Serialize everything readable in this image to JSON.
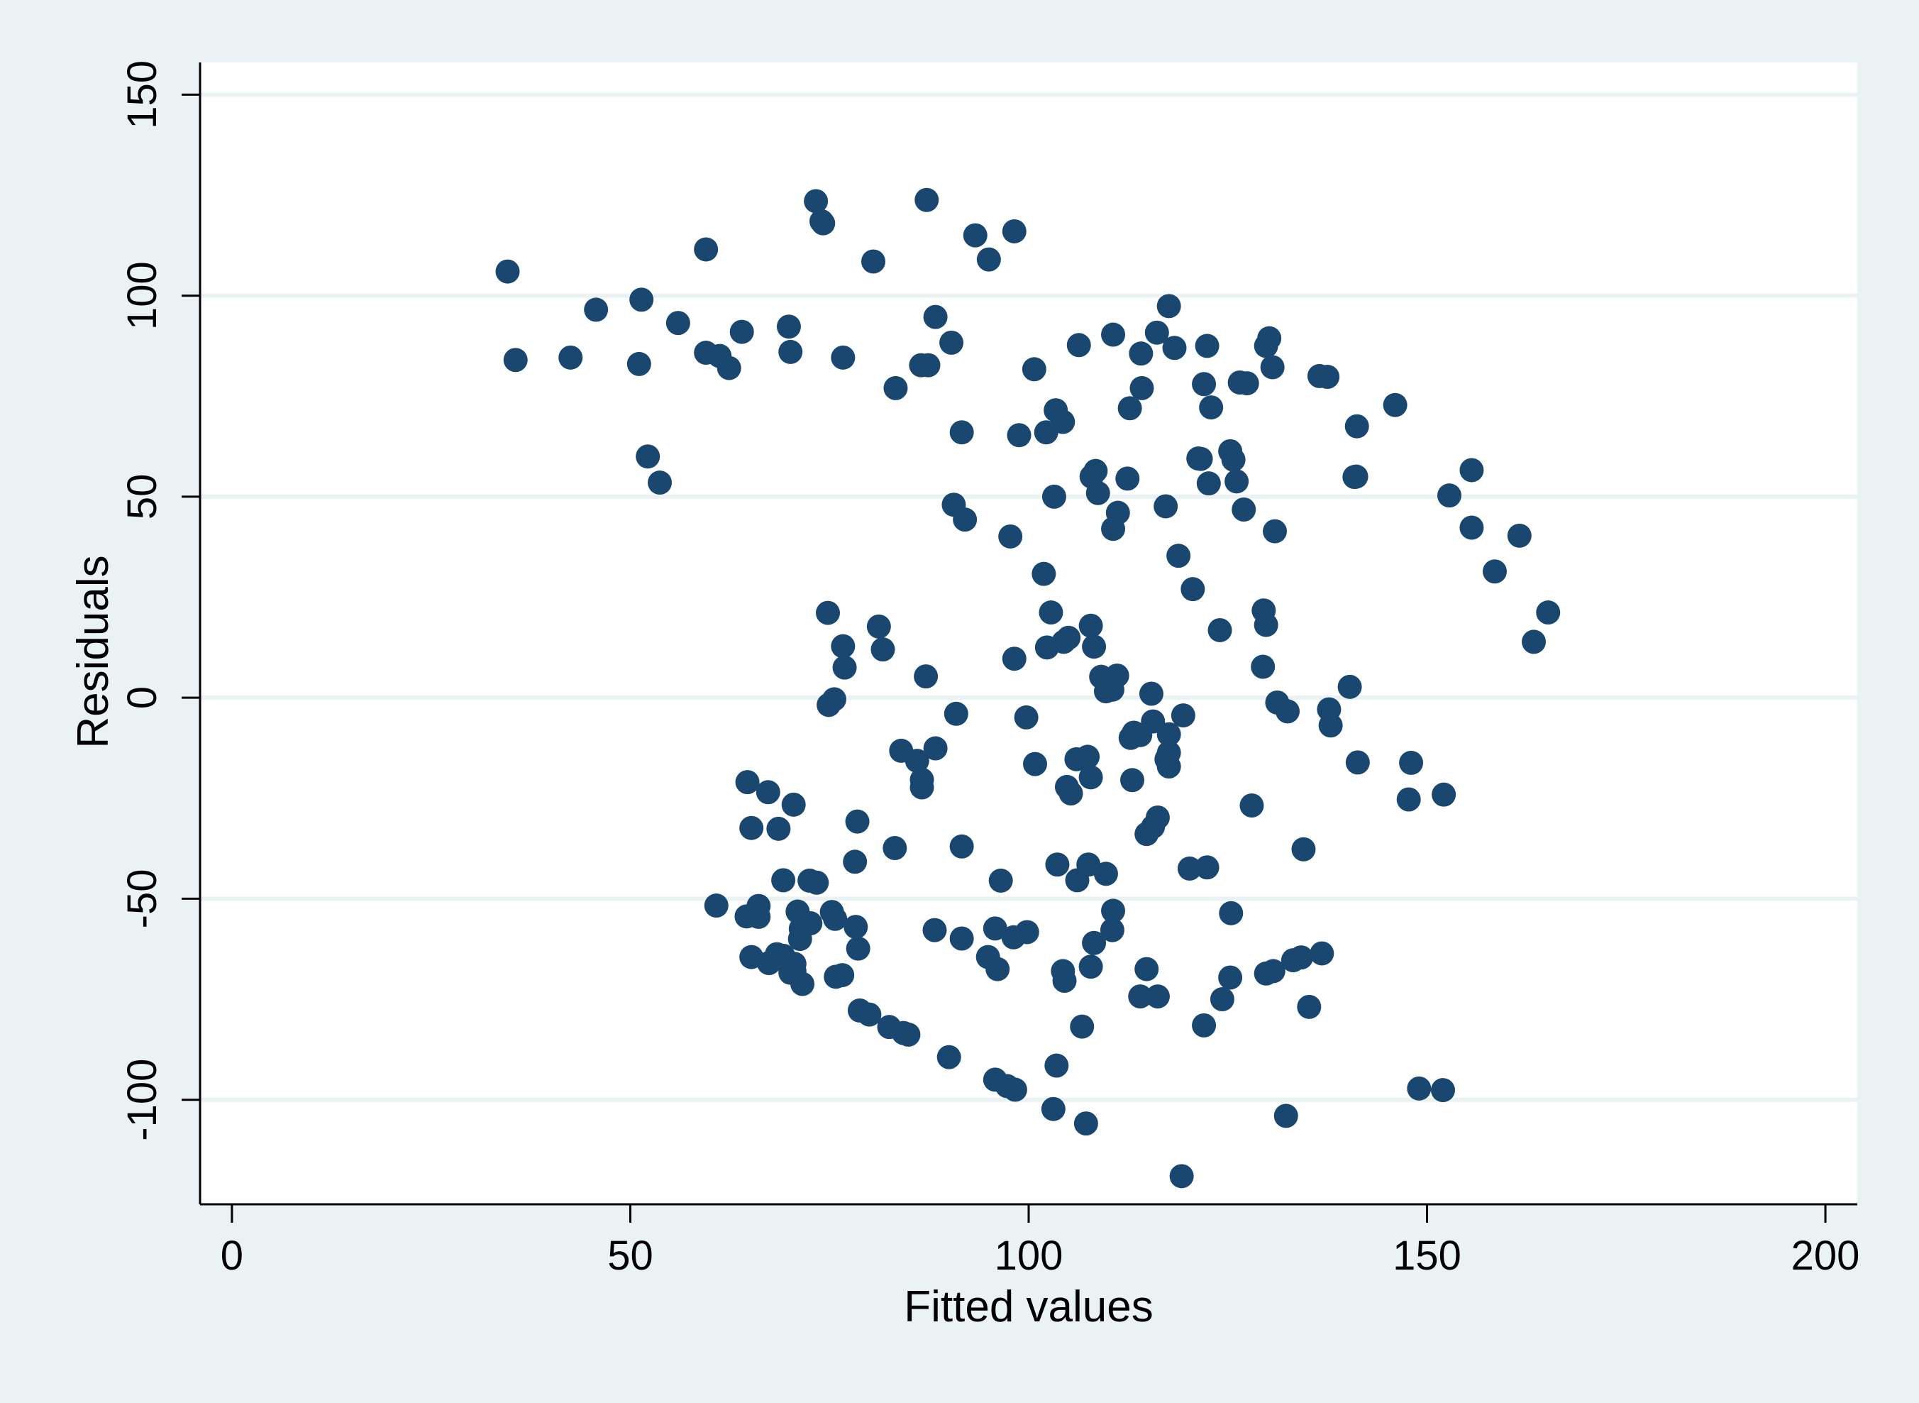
{
  "chart_data": {
    "type": "scatter",
    "title": "",
    "xlabel": "Fitted values",
    "ylabel": "Residuals",
    "xlim": [
      -4,
      204
    ],
    "ylim": [
      -126,
      158
    ],
    "xticks": [
      0,
      50,
      100,
      150,
      200
    ],
    "yticks": [
      -100,
      -50,
      0,
      50,
      100,
      150
    ],
    "xtick_labels": [
      "0",
      "50",
      "100",
      "150",
      "200"
    ],
    "ytick_labels": [
      "-100",
      "-50",
      "0",
      "50",
      "100",
      "150"
    ],
    "grid": "horizontal",
    "legend": "none",
    "colors": {
      "outer_background": "#eaf2f3",
      "plot_background": "#ffffff",
      "gridline": "#eaf2f3",
      "axis": "#000000",
      "marker": "#1a476f"
    },
    "series": [
      {
        "x": [
          34.6,
          35.6,
          42.5,
          45.7,
          51.1,
          51.4,
          52.2,
          53.7,
          56.0,
          59.5,
          59.5,
          61.2,
          62.4,
          64.0,
          69.9,
          70.1,
          73.3,
          74.0,
          74.2,
          76.7,
          80.5,
          83.3,
          86.5,
          87.2,
          87.4,
          88.3,
          90.3,
          91.6,
          93.3,
          95.0,
          98.2,
          98.8,
          100.7,
          102.2,
          103.4,
          104.3,
          106.3,
          110.6,
          112.7,
          114.1,
          114.2,
          116.1,
          117.6,
          118.3,
          121.6,
          122.0,
          122.4,
          122.9,
          126.5,
          129.8,
          130.2,
          130.6,
          136.5,
          137.5,
          141.2,
          146.0,
          141.1,
          152.8,
          155.6,
          155.6,
          161.6,
          158.5,
          165.2,
          163.4,
          103.2,
          107.9,
          108.4,
          108.7,
          110.6,
          111.2,
          112.4,
          117.2,
          118.8,
          121.3,
          122.6,
          125.3,
          125.7,
          126.1,
          127.0,
          130.9,
          140.9,
          90.6,
          92.0,
          97.7,
          101.9,
          102.8,
          102.3,
          104.4,
          105.0,
          107.8,
          108.2,
          109.1,
          110.2,
          111.1,
          109.7,
          110.5,
          115.4,
          120.6,
          124.0,
          129.5,
          129.8,
          129.4,
          131.2,
          140.3,
          132.5,
          137.7,
          137.9,
          141.3,
          148.0,
          147.7,
          152.1,
          134.5,
          128.0,
          127.4,
          74.8,
          76.7,
          81.2,
          81.7,
          76.9,
          75.6,
          74.9,
          87.1,
          90.9,
          98.2,
          99.7,
          100.8,
          104.8,
          105.3,
          106.0,
          107.4,
          107.8,
          112.8,
          113.2,
          114.0,
          115.6,
          116.2,
          117.3,
          117.6,
          117.6,
          117.6,
          88.3,
          86.0,
          86.6,
          86.6,
          84.0,
          64.7,
          68.6,
          65.2,
          67.3,
          70.5,
          78.5,
          83.2,
          78.2,
          69.2,
          72.5,
          73.4,
          115.6,
          114.8,
          113.0,
          91.6,
          96.5,
          103.6,
          107.5,
          108.2,
          109.7,
          106.1,
          110.6,
          110.5,
          119.4,
          120.2,
          122.4,
          125.4,
          60.8,
          64.6,
          66.1,
          66.1,
          71.0,
          71.4,
          72.6,
          71.3,
          75.7,
          75.3,
          78.3,
          78.6,
          65.2,
          68.4,
          67.4,
          69.2,
          70.6,
          70.6,
          71.6,
          70.1,
          76.6,
          75.8,
          88.2,
          91.6,
          94.9,
          95.8,
          96.1,
          98.1,
          99.8,
          104.3,
          104.5,
          107.8,
          114.8,
          116.2,
          125.3,
          130.7,
          129.8,
          133.2,
          134.2,
          136.8,
          78.8,
          80.0,
          82.5,
          84.3,
          84.9,
          90.0,
          95.8,
          97.3,
          98.3,
          103.5,
          103.1,
          106.7,
          114.0,
          122.0,
          124.3,
          135.2,
          107.2,
          119.2,
          132.3,
          149.0,
          152.0
        ],
        "y": [
          106.0,
          84.0,
          84.6,
          96.5,
          83.0,
          99.0,
          60.0,
          53.5,
          93.2,
          111.5,
          85.8,
          85.0,
          82.0,
          91.0,
          92.3,
          86.0,
          123.5,
          118.5,
          118.0,
          84.6,
          108.5,
          77.0,
          82.7,
          123.8,
          82.7,
          94.7,
          88.3,
          66.0,
          115.0,
          109.0,
          116.0,
          65.3,
          81.7,
          66.0,
          71.5,
          68.6,
          87.7,
          90.3,
          72.0,
          85.6,
          77.0,
          90.8,
          97.4,
          87.0,
          59.4,
          78.0,
          87.5,
          72.2,
          78.4,
          87.5,
          89.4,
          82.2,
          80.0,
          79.8,
          67.5,
          72.8,
          55.0,
          50.3,
          56.6,
          42.3,
          40.3,
          31.4,
          21.2,
          13.9,
          50.0,
          55.0,
          56.4,
          50.9,
          42.0,
          46.0,
          54.5,
          47.6,
          35.3,
          59.5,
          53.3,
          61.3,
          59.2,
          53.8,
          46.8,
          41.4,
          54.9,
          48.0,
          44.3,
          40.1,
          30.8,
          21.2,
          12.5,
          13.9,
          14.9,
          17.9,
          12.7,
          5.2,
          4.3,
          5.5,
          1.6,
          2.0,
          1.0,
          27.0,
          16.8,
          21.7,
          18.1,
          7.7,
          -1.2,
          2.7,
          -3.4,
          -2.9,
          -6.9,
          -16.1,
          -16.2,
          -25.3,
          -24.1,
          -37.7,
          -26.8,
          78.2,
          21.1,
          12.8,
          17.7,
          12.0,
          7.5,
          -0.4,
          -1.8,
          5.3,
          -4.0,
          9.7,
          -4.9,
          -16.5,
          -22.2,
          -23.8,
          -15.3,
          -14.7,
          -19.8,
          -10.0,
          -8.7,
          -9.3,
          -5.9,
          -29.8,
          -15.3,
          -13.7,
          -17.1,
          -9.1,
          -12.6,
          -15.7,
          -20.4,
          -22.3,
          -13.2,
          -21.0,
          -32.6,
          -32.4,
          -23.5,
          -26.6,
          -30.8,
          -37.4,
          -40.8,
          -45.4,
          -45.5,
          -46.0,
          -32.1,
          -33.9,
          -20.5,
          -37.0,
          -45.5,
          -41.5,
          -41.5,
          -61.0,
          -43.8,
          -45.4,
          -53.0,
          -57.8,
          -4.4,
          -42.5,
          -42.2,
          -53.6,
          -51.7,
          -54.4,
          -54.5,
          -51.8,
          -53.2,
          -57.5,
          -56.1,
          -60.0,
          -55.0,
          -53.3,
          -57.0,
          -62.4,
          -64.5,
          -63.8,
          -66.0,
          -64.2,
          -66.2,
          -68.0,
          -71.2,
          -68.4,
          -69.0,
          -69.4,
          -57.8,
          -59.9,
          -64.5,
          -57.4,
          -67.5,
          -59.6,
          -58.3,
          -68.0,
          -70.4,
          -66.9,
          -67.5,
          -74.3,
          -69.6,
          -68.0,
          -68.6,
          -65.3,
          -64.6,
          -63.6,
          -77.8,
          -78.8,
          -81.9,
          -83.4,
          -83.8,
          -89.4,
          -95.0,
          -96.6,
          -97.5,
          -91.5,
          -102.3,
          -81.8,
          -74.3,
          -81.5,
          -75.0,
          -76.9,
          -105.9,
          -119.0,
          -104.0,
          -97.2,
          -97.6
        ]
      }
    ]
  }
}
